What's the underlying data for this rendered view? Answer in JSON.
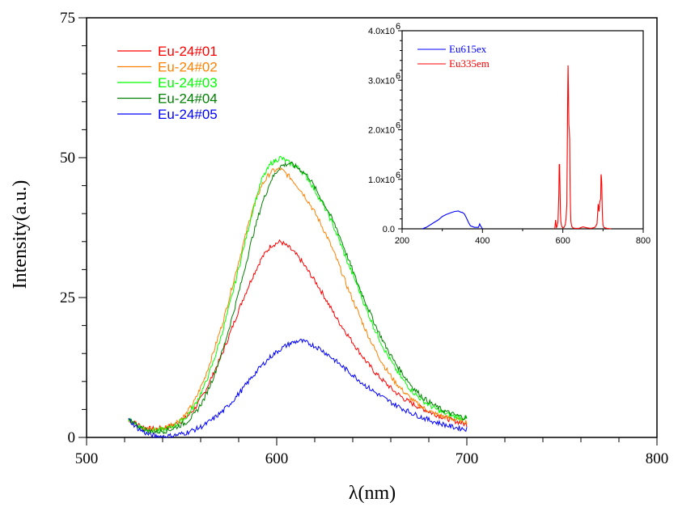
{
  "chart_data": [
    {
      "type": "line",
      "title": "",
      "xlabel": "λ(nm)",
      "ylabel": "Intensity(a.u.)",
      "xlim": [
        500,
        800
      ],
      "ylim": [
        0,
        75
      ],
      "x_ticks": [
        "500",
        "600",
        "700",
        "800"
      ],
      "y_ticks": [
        "0",
        "25",
        "50",
        "75"
      ],
      "legend_position": "top-left",
      "grid": false,
      "series": [
        {
          "name": "Eu-24#01",
          "color": "#ff0000",
          "x": [
            522,
            527,
            532,
            537,
            542,
            547,
            552,
            557,
            562,
            567,
            572,
            577,
            582,
            587,
            592,
            597,
            602,
            607,
            612,
            617,
            622,
            627,
            632,
            637,
            642,
            647,
            652,
            657,
            662,
            667,
            672,
            677,
            682,
            687,
            692,
            697,
            700
          ],
          "y": [
            3.2,
            2.3,
            1.6,
            1.5,
            1.8,
            2.4,
            3.4,
            5.2,
            8.0,
            11.6,
            15.5,
            20.0,
            24.5,
            28.5,
            32.0,
            34.3,
            35.0,
            33.8,
            32.0,
            29.5,
            27.0,
            24.0,
            21.0,
            18.5,
            16.0,
            13.6,
            11.5,
            9.8,
            8.2,
            6.9,
            5.9,
            5.1,
            4.3,
            3.7,
            3.1,
            2.6,
            2.3
          ]
        },
        {
          "name": "Eu-24#02",
          "color": "#ff8000",
          "x": [
            522,
            527,
            532,
            537,
            542,
            547,
            552,
            557,
            562,
            567,
            572,
            577,
            582,
            587,
            592,
            597,
            602,
            607,
            612,
            617,
            622,
            627,
            632,
            637,
            642,
            647,
            652,
            657,
            662,
            667,
            672,
            677,
            682,
            687,
            692,
            697,
            700
          ],
          "y": [
            3.2,
            2.2,
            1.5,
            1.4,
            1.9,
            2.7,
            4.0,
            6.6,
            10.5,
            15.5,
            21.0,
            27.5,
            34.0,
            40.5,
            45.0,
            47.5,
            48.0,
            46.5,
            44.5,
            42.0,
            39.0,
            35.5,
            31.5,
            27.0,
            23.0,
            19.0,
            15.5,
            12.5,
            10.0,
            8.1,
            6.5,
            5.3,
            4.4,
            3.8,
            3.3,
            3.0,
            2.8
          ]
        },
        {
          "name": "Eu-24#03",
          "color": "#00ff00",
          "x": [
            522,
            527,
            532,
            537,
            542,
            547,
            552,
            557,
            562,
            567,
            572,
            577,
            582,
            587,
            592,
            597,
            602,
            607,
            612,
            617,
            622,
            627,
            632,
            637,
            642,
            647,
            652,
            657,
            662,
            667,
            672,
            677,
            682,
            687,
            692,
            697,
            700
          ],
          "y": [
            3.2,
            2.1,
            1.4,
            1.2,
            1.5,
            2.2,
            3.5,
            5.8,
            9.2,
            13.8,
            19.5,
            26.0,
            33.0,
            40.0,
            46.0,
            49.0,
            50.0,
            49.0,
            48.0,
            46.0,
            43.0,
            40.0,
            36.0,
            31.5,
            27.5,
            23.0,
            19.0,
            15.5,
            12.5,
            10.0,
            8.0,
            6.5,
            5.4,
            4.5,
            3.9,
            3.5,
            3.3
          ]
        },
        {
          "name": "Eu-24#04",
          "color": "#008000",
          "x": [
            522,
            527,
            532,
            537,
            542,
            547,
            552,
            557,
            562,
            567,
            572,
            577,
            582,
            587,
            592,
            597,
            602,
            607,
            612,
            617,
            622,
            627,
            632,
            637,
            642,
            647,
            652,
            657,
            662,
            667,
            672,
            677,
            682,
            687,
            692,
            697,
            700
          ],
          "y": [
            3.2,
            2.0,
            1.2,
            1.0,
            1.2,
            1.8,
            2.6,
            4.2,
            7.0,
            11.0,
            16.0,
            22.0,
            28.5,
            35.5,
            41.5,
            46.0,
            48.5,
            49.0,
            48.0,
            46.5,
            43.5,
            40.5,
            37.0,
            32.5,
            28.0,
            24.0,
            20.0,
            16.5,
            13.5,
            11.0,
            8.8,
            7.1,
            5.9,
            4.9,
            4.2,
            3.7,
            3.5
          ]
        },
        {
          "name": "Eu-24#05",
          "color": "#0000ff",
          "x": [
            522,
            527,
            532,
            537,
            542,
            547,
            552,
            557,
            562,
            567,
            572,
            577,
            582,
            587,
            592,
            597,
            602,
            607,
            612,
            617,
            622,
            627,
            632,
            637,
            642,
            647,
            652,
            657,
            662,
            667,
            672,
            677,
            682,
            687,
            692,
            697,
            700
          ],
          "y": [
            3.2,
            1.6,
            0.6,
            0.2,
            0.2,
            0.4,
            0.8,
            1.4,
            2.2,
            3.4,
            4.8,
            6.6,
            8.6,
            10.8,
            12.8,
            14.5,
            15.8,
            16.8,
            17.3,
            16.8,
            16.0,
            14.8,
            13.4,
            12.0,
            10.6,
            9.2,
            8.0,
            6.9,
            5.9,
            5.0,
            4.2,
            3.5,
            2.9,
            2.4,
            1.9,
            1.6,
            1.5
          ]
        }
      ]
    },
    {
      "type": "line",
      "title": "",
      "xlabel": "",
      "ylabel": "",
      "xlim": [
        200,
        800
      ],
      "ylim": [
        0,
        4000000
      ],
      "x_ticks": [
        "200",
        "400",
        "600",
        "800"
      ],
      "y_ticks": [
        "0.0",
        "1.0x10",
        "2.0x10",
        "3.0x10",
        "4.0x10"
      ],
      "y_tick_exponent": "6",
      "legend_position": "top-left",
      "series": [
        {
          "name": "Eu615ex",
          "color": "#0000ff",
          "x": [
            250,
            260,
            270,
            280,
            290,
            300,
            310,
            320,
            330,
            340,
            345,
            350,
            355,
            360,
            365,
            370,
            380,
            390,
            393,
            395,
            397,
            400
          ],
          "y": [
            0,
            30000,
            80000,
            130000,
            180000,
            250000,
            290000,
            320000,
            350000,
            360000,
            340000,
            330000,
            300000,
            220000,
            130000,
            60000,
            30000,
            30000,
            100000,
            60000,
            40000,
            0
          ]
        },
        {
          "name": "Eu335em",
          "color": "#ff0000",
          "x": [
            580,
            582,
            584,
            586,
            588,
            590,
            591,
            592,
            593,
            594,
            595,
            597,
            600,
            603,
            606,
            608,
            610,
            611,
            612,
            613,
            614,
            615,
            616,
            617,
            618,
            619,
            620,
            622,
            625,
            630,
            640,
            650,
            660,
            670,
            680,
            685,
            688,
            690,
            692,
            694,
            695,
            696,
            697,
            698,
            699,
            700,
            702,
            705,
            710,
            720
          ],
          "y": [
            0,
            180000,
            20000,
            60000,
            150000,
            700000,
            1300000,
            1300000,
            800000,
            350000,
            150000,
            50000,
            20000,
            30000,
            80000,
            200000,
            500000,
            1500000,
            2600000,
            3300000,
            2800000,
            2100000,
            2000000,
            1800000,
            900000,
            400000,
            150000,
            50000,
            20000,
            10000,
            10000,
            40000,
            20000,
            10000,
            30000,
            100000,
            500000,
            350000,
            550000,
            600000,
            1100000,
            1050000,
            900000,
            450000,
            200000,
            80000,
            30000,
            20000,
            10000,
            0
          ]
        }
      ]
    }
  ]
}
